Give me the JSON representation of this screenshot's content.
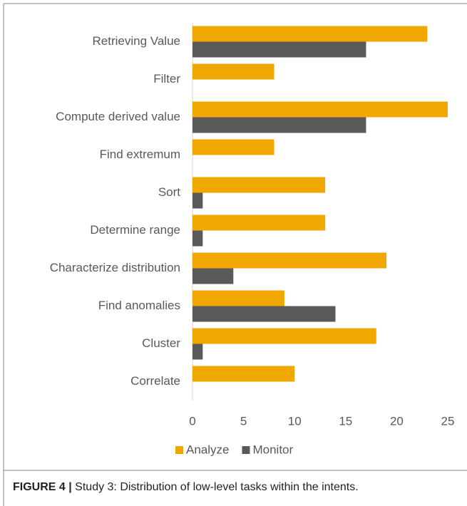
{
  "chart_data": {
    "type": "bar",
    "orientation": "horizontal",
    "categories": [
      "Retrieving Value",
      "Filter",
      "Compute derived value",
      "Find extremum",
      "Sort",
      "Determine range",
      "Characterize distribution",
      "Find anomalies",
      "Cluster",
      "Correlate"
    ],
    "series": [
      {
        "name": "Analyze",
        "color": "#f0a800",
        "values": [
          23,
          8,
          25,
          8,
          13,
          13,
          19,
          9,
          18,
          10
        ]
      },
      {
        "name": "Monitor",
        "color": "#595959",
        "values": [
          17,
          0,
          17,
          0,
          1,
          1,
          4,
          14,
          1,
          0
        ]
      }
    ],
    "xlim": [
      0,
      25
    ],
    "xticks": [
      0,
      5,
      10,
      15,
      20,
      25
    ],
    "legend": "bottom"
  },
  "caption": {
    "label": "FIGURE 4 |",
    "text": "Study 3: Distribution of low-level tasks within the intents."
  }
}
